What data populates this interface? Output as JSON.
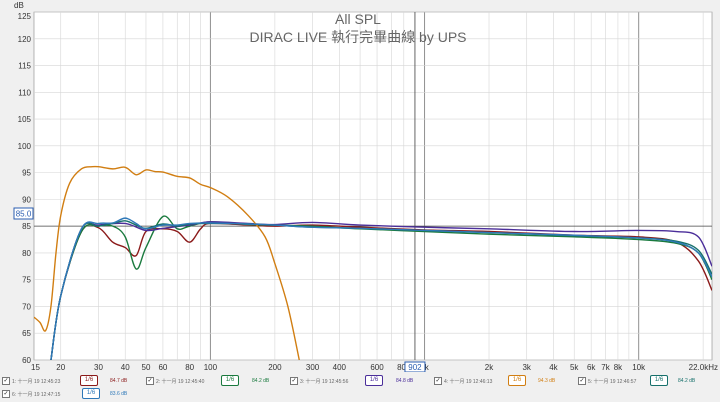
{
  "chart_data": {
    "type": "line",
    "title": "All SPL",
    "subtitle": "DIRAC LIVE 執行完畢曲線 by UPS",
    "ylabel": "dB",
    "xlabel": "",
    "xscale": "log",
    "xlim": [
      15,
      22000
    ],
    "ylim": [
      60,
      125
    ],
    "grid": true,
    "x_ticks": [
      15,
      20,
      30,
      40,
      50,
      60,
      80,
      100,
      200,
      300,
      400,
      600,
      800,
      1000,
      2000,
      3000,
      4000,
      5000,
      6000,
      7000,
      8000,
      10000,
      22000
    ],
    "x_tick_labels": [
      "15",
      "20",
      "30",
      "40",
      "50",
      "60",
      "80",
      "100",
      "200",
      "300",
      "400",
      "600",
      "800",
      "1k",
      "2k",
      "3k",
      "4k",
      "5k",
      "6k",
      "7k",
      "8k",
      "10k",
      "22.0kHz"
    ],
    "y_ticks": [
      60,
      65,
      70,
      75,
      80,
      85,
      90,
      95,
      100,
      105,
      110,
      115,
      120,
      125
    ],
    "y_tick_labels": [
      "60",
      "65",
      "70",
      "75",
      "80",
      "85",
      "90",
      "95",
      "100",
      "105",
      "110",
      "115",
      "120",
      "125"
    ],
    "reference_level": 85.0,
    "reference_label": "85.0",
    "cursor_x": 902,
    "cursor_label": "902",
    "series": [
      {
        "name": "1: 十一月 19 12:45:23",
        "color": "#8b1a1a",
        "x": [
          18,
          20,
          25,
          30,
          35,
          40,
          45,
          50,
          60,
          70,
          80,
          90,
          100,
          150,
          200,
          300,
          500,
          1000,
          2000,
          5000,
          10000,
          15000,
          19000,
          22000
        ],
        "y": [
          60,
          72,
          84,
          84.7,
          82,
          81,
          79.5,
          84,
          84.5,
          84,
          82,
          84.5,
          85.5,
          85.2,
          85,
          85.2,
          84.8,
          84.3,
          84.0,
          83.3,
          83.0,
          82.0,
          78.5,
          73.0
        ]
      },
      {
        "name": "2: 十一月 19 12:45:40",
        "color": "#1a7a3e",
        "x": [
          18,
          20,
          25,
          30,
          35,
          40,
          45,
          50,
          60,
          70,
          80,
          100,
          150,
          200,
          300,
          500,
          1000,
          2000,
          5000,
          10000,
          15000,
          19000,
          22000
        ],
        "y": [
          60,
          72,
          84,
          85,
          85,
          83,
          77,
          81,
          86.8,
          84.5,
          85,
          85.8,
          85.3,
          85.2,
          85,
          84.5,
          84.0,
          83.5,
          83.0,
          82.5,
          81.8,
          80.0,
          75.0
        ]
      },
      {
        "name": "3: 十一月 19 12:45:56",
        "color": "#4b2e9a",
        "x": [
          18,
          20,
          25,
          30,
          40,
          50,
          60,
          80,
          100,
          150,
          200,
          300,
          500,
          1000,
          2000,
          5000,
          10000,
          15000,
          19000,
          22000
        ],
        "y": [
          60,
          72,
          84.5,
          85.2,
          85.5,
          84.2,
          84.6,
          85.2,
          85.8,
          85.5,
          85.3,
          85.7,
          85.2,
          84.8,
          84.5,
          84.0,
          84.2,
          84.0,
          83.0,
          77.5
        ]
      },
      {
        "name": "4: 十一月 19 12:46:13",
        "color": "#d17e12",
        "x": [
          15,
          16,
          17,
          18,
          19,
          20,
          22,
          25,
          28,
          30,
          35,
          40,
          45,
          50,
          55,
          60,
          70,
          80,
          90,
          100,
          120,
          150,
          180,
          200,
          230,
          260
        ],
        "y": [
          68,
          67,
          65.5,
          70,
          80,
          87,
          93,
          95.7,
          96.1,
          96.1,
          95.7,
          96.0,
          94.6,
          95.5,
          95.2,
          95.1,
          94.3,
          94.0,
          92.8,
          92.2,
          90.5,
          87.0,
          83.0,
          78.0,
          70.0,
          60.0
        ]
      },
      {
        "name": "5: 十一月 19 12:46:57",
        "color": "#16706b",
        "x": [
          18,
          20,
          25,
          30,
          35,
          40,
          45,
          50,
          60,
          70,
          80,
          100,
          150,
          200,
          300,
          500,
          1000,
          2000,
          5000,
          10000,
          15000,
          19000,
          22000
        ],
        "y": [
          60,
          72,
          84.5,
          85,
          85.5,
          86,
          85.2,
          84.6,
          85.4,
          85,
          85.4,
          85.5,
          85.4,
          85.2,
          84.8,
          84.6,
          84.2,
          83.8,
          83.2,
          82.8,
          82.2,
          80.5,
          76.0
        ]
      },
      {
        "name": "6: 十一月 19 12:47:15",
        "color": "#2e78b8",
        "x": [
          18,
          20,
          25,
          30,
          35,
          40,
          45,
          50,
          60,
          70,
          80,
          100,
          150,
          200,
          300,
          500,
          1000,
          2000,
          5000,
          10000,
          15000,
          19000,
          22000
        ],
        "y": [
          60,
          72,
          84.5,
          85.5,
          85.6,
          86.5,
          85.5,
          84.5,
          85.2,
          85.2,
          85.5,
          85.6,
          85.4,
          85.2,
          84.8,
          84.6,
          84.2,
          83.8,
          83.3,
          82.8,
          82.0,
          80.0,
          75.5
        ]
      }
    ]
  },
  "legend": [
    {
      "label": "1: 十一月 19 12:45:23",
      "button": "1/6",
      "value": "84.7 dB",
      "color": "#8b1a1a",
      "checked": "✓"
    },
    {
      "label": "2: 十一月 19 12:45:40",
      "button": "1/6",
      "value": "84.2 dB",
      "color": "#1a7a3e",
      "checked": "✓"
    },
    {
      "label": "3: 十一月 19 12:45:56",
      "button": "1/6",
      "value": "84.8 dB",
      "color": "#4b2e9a",
      "checked": "✓"
    },
    {
      "label": "4: 十一月 19 12:46:13",
      "button": "1/6",
      "value": "94.3 dB",
      "color": "#d17e12",
      "checked": "✓"
    },
    {
      "label": "5: 十一月 19 12:46:57",
      "button": "1/6",
      "value": "84.2 dB",
      "color": "#16706b",
      "checked": "✓"
    },
    {
      "label": "6: 十一月 19 12:47:15",
      "button": "1/6",
      "value": "83.6 dB",
      "color": "#2e78b8",
      "checked": "✓"
    }
  ]
}
